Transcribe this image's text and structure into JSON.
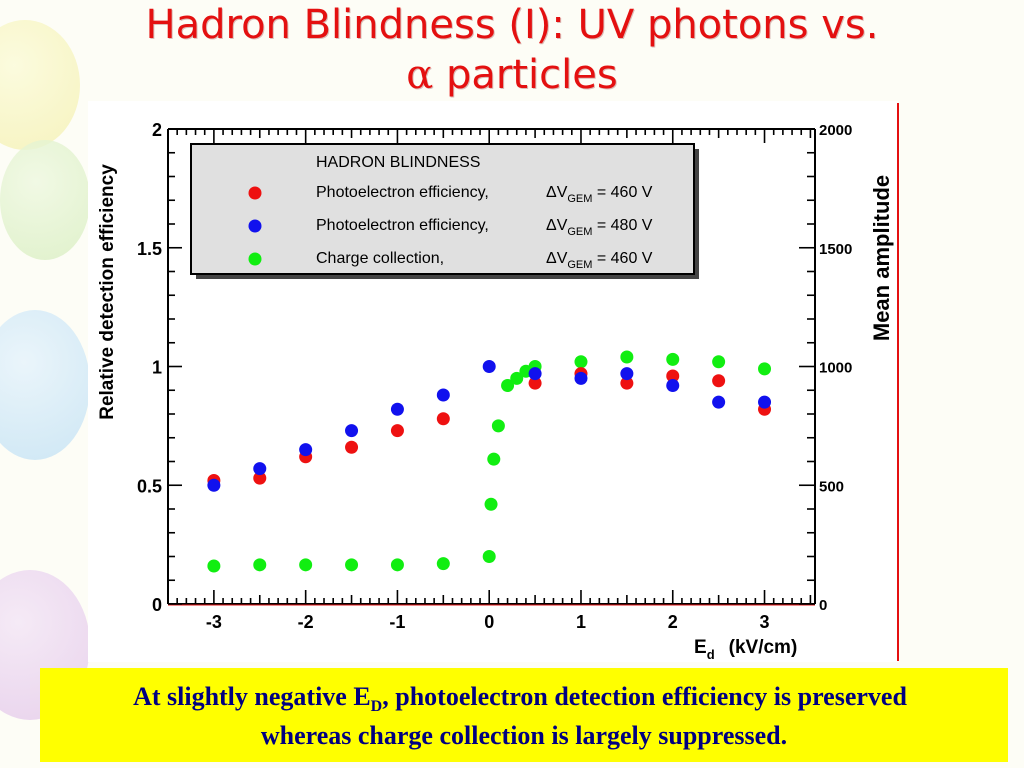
{
  "slide": {
    "title_line1": "Hadron Blindness (I): UV photons vs.",
    "title_alpha": "α",
    "title_line2_rest": " particles",
    "caption_line1_a": "At slightly negative E",
    "caption_line1_sub": "D",
    "caption_line1_b": ", photoelectron detection efficiency is preserved",
    "caption_line2": "whereas charge collection is largely suppressed."
  },
  "colors": {
    "title": "#e41010",
    "caption_bg": "#ffff00",
    "caption_text": "#000080",
    "series_red": "#ee1111",
    "series_blue": "#1111ee",
    "series_green": "#11ee11",
    "legend_bg": "#e0e0e0"
  },
  "chart_data": {
    "type": "scatter",
    "ylabel": "Relative detection efficiency",
    "y2label": "Mean amplitude",
    "xlabel_main": "E",
    "xlabel_sub": "d",
    "xlabel_unit": "(kV/cm)",
    "xlim": [
      -3.5,
      3.55
    ],
    "ylim": [
      0,
      2
    ],
    "y2lim": [
      0,
      2000
    ],
    "xticks": [
      "-3",
      "-2",
      "-1",
      "0",
      "1",
      "2",
      "3"
    ],
    "yticks": [
      "0",
      "0.5",
      "1",
      "1.5",
      "2"
    ],
    "y2ticks": [
      "0",
      "500",
      "1000",
      "1500",
      "2000"
    ],
    "legend": {
      "title": "HADRON  BLINDNESS",
      "placement": "top-left",
      "entries": [
        {
          "label": "Photoelectron efficiency,",
          "dv": "ΔV",
          "dv_sub": "GEM",
          "dv_value": " = 460 V",
          "color": "red"
        },
        {
          "label": "Photoelectron efficiency,",
          "dv": "ΔV",
          "dv_sub": "GEM",
          "dv_value": " = 480 V",
          "color": "blue"
        },
        {
          "label": "Charge collection,",
          "dv": "ΔV",
          "dv_sub": "GEM",
          "dv_value": " = 460 V",
          "color": "green"
        }
      ]
    },
    "series": [
      {
        "name": "Photoelectron efficiency, ΔVGEM = 460 V",
        "color": "red",
        "x": [
          -3,
          -2.5,
          -2,
          -1.5,
          -1,
          -0.5,
          0.5,
          1,
          1.5,
          2,
          2.5,
          3
        ],
        "y": [
          0.52,
          0.53,
          0.62,
          0.66,
          0.73,
          0.78,
          0.93,
          0.97,
          0.93,
          0.96,
          0.94,
          0.82
        ]
      },
      {
        "name": "Photoelectron efficiency, ΔVGEM = 480 V",
        "color": "blue",
        "x": [
          -3,
          -2.5,
          -2,
          -1.5,
          -1,
          -0.5,
          0,
          0.5,
          1,
          1.5,
          2,
          2.5,
          3
        ],
        "y": [
          0.5,
          0.57,
          0.65,
          0.73,
          0.82,
          0.88,
          1.0,
          0.97,
          0.95,
          0.97,
          0.92,
          0.85,
          0.85
        ]
      },
      {
        "name": "Charge collection, ΔVGEM = 460 V",
        "color": "green",
        "x": [
          -3,
          -2.5,
          -2,
          -1.5,
          -1,
          -0.5,
          0,
          0.02,
          0.05,
          0.1,
          0.2,
          0.3,
          0.4,
          0.5,
          1,
          1.5,
          2,
          2.5,
          3
        ],
        "y": [
          0.16,
          0.165,
          0.165,
          0.165,
          0.165,
          0.17,
          0.2,
          0.42,
          0.61,
          0.75,
          0.92,
          0.95,
          0.98,
          1.0,
          1.02,
          1.04,
          1.03,
          1.02,
          0.99
        ]
      }
    ]
  }
}
